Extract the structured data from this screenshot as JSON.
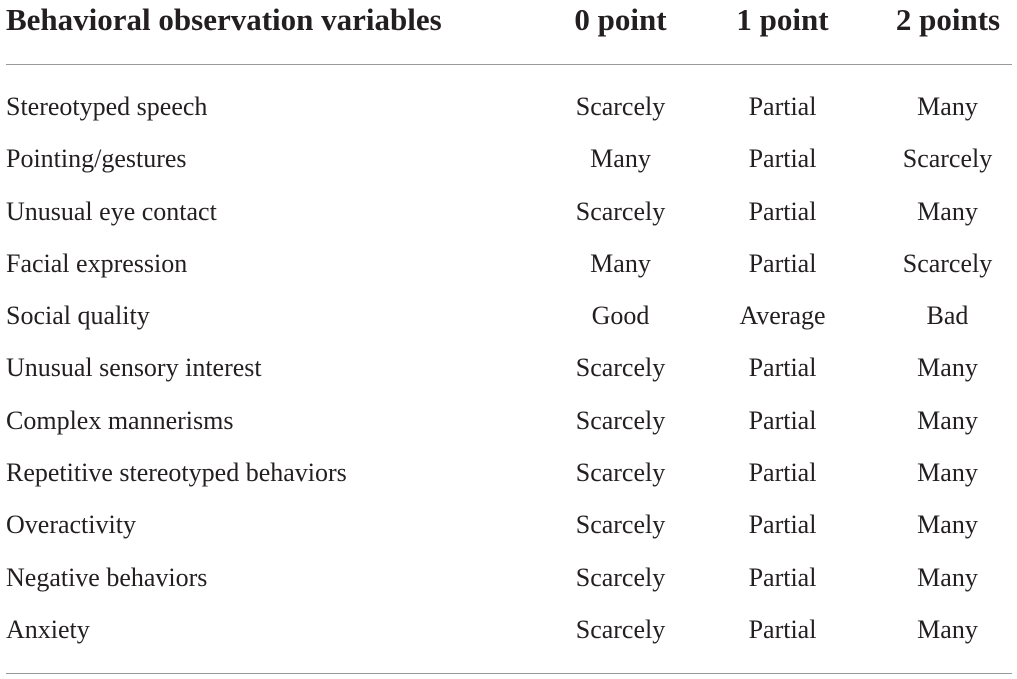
{
  "table": {
    "headers": {
      "variable": "Behavioral observation variables",
      "col0": "0 point",
      "col1": "1 point",
      "col2": "2 points"
    },
    "rows": [
      {
        "variable": "Stereotyped speech",
        "p0": "Scarcely",
        "p1": "Partial",
        "p2": "Many"
      },
      {
        "variable": "Pointing/gestures",
        "p0": "Many",
        "p1": "Partial",
        "p2": "Scarcely"
      },
      {
        "variable": "Unusual eye contact",
        "p0": "Scarcely",
        "p1": "Partial",
        "p2": "Many"
      },
      {
        "variable": "Facial expression",
        "p0": "Many",
        "p1": "Partial",
        "p2": "Scarcely"
      },
      {
        "variable": "Social quality",
        "p0": "Good",
        "p1": "Average",
        "p2": "Bad"
      },
      {
        "variable": "Unusual sensory interest",
        "p0": "Scarcely",
        "p1": "Partial",
        "p2": "Many"
      },
      {
        "variable": "Complex mannerisms",
        "p0": "Scarcely",
        "p1": "Partial",
        "p2": "Many"
      },
      {
        "variable": "Repetitive stereotyped behaviors",
        "p0": "Scarcely",
        "p1": "Partial",
        "p2": "Many"
      },
      {
        "variable": "Overactivity",
        "p0": "Scarcely",
        "p1": "Partial",
        "p2": "Many"
      },
      {
        "variable": "Negative behaviors",
        "p0": "Scarcely",
        "p1": "Partial",
        "p2": "Many"
      },
      {
        "variable": "Anxiety",
        "p0": "Scarcely",
        "p1": "Partial",
        "p2": "Many"
      }
    ]
  }
}
